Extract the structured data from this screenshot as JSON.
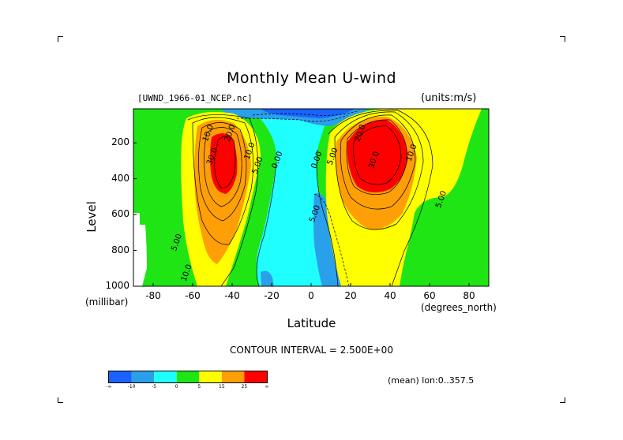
{
  "header": {
    "title": "Monthly Mean U-wind",
    "dataset": "[UWND_1966-01_NCEP.nc]",
    "units": "(units:m/s)"
  },
  "footer": {
    "contour_interval": "CONTOUR INTERVAL = 2.500E+00",
    "mean_info": "(mean) lon:0..357.5"
  },
  "chart_data": {
    "type": "heatmap",
    "title": "Monthly Mean U-wind",
    "xlabel": "Latitude",
    "xunit": "(degrees_north)",
    "ylabel": "Level",
    "yunit": "(millibar)",
    "xlim": [
      -90,
      90
    ],
    "ylim": [
      1000,
      10
    ],
    "x_ticks": [
      -80,
      -60,
      -40,
      -20,
      0,
      20,
      40,
      60,
      80
    ],
    "x_tick_labels": [
      "-80",
      "-60",
      "-40",
      "-20",
      "0",
      "20",
      "40",
      "60",
      "80"
    ],
    "y_ticks": [
      200,
      400,
      600,
      800,
      1000
    ],
    "y_tick_labels": [
      "200",
      "400",
      "600",
      "800",
      "1000"
    ],
    "contour_interval": 2.5,
    "features": [
      {
        "kind": "max",
        "lat": -47,
        "level": 250,
        "value": 30
      },
      {
        "kind": "max",
        "lat": 31,
        "level": 200,
        "value": 35
      },
      {
        "kind": "min",
        "lat": 8,
        "level": 700,
        "value": -5
      },
      {
        "kind": "min",
        "lat": 20,
        "level": 40,
        "value": -15
      }
    ],
    "contour_labels": [
      {
        "text": "10.0",
        "lat": -51,
        "level": 150
      },
      {
        "text": "20.0",
        "lat": -40,
        "level": 150
      },
      {
        "text": "30.0",
        "lat": -49,
        "level": 280
      },
      {
        "text": "10.0",
        "lat": -30,
        "level": 250
      },
      {
        "text": "5.00",
        "lat": -26,
        "level": 330
      },
      {
        "text": "0.00",
        "lat": -16,
        "level": 300
      },
      {
        "text": "0.00",
        "lat": 4,
        "level": 300
      },
      {
        "text": "5.00",
        "lat": 12,
        "level": 280
      },
      {
        "text": "20.0",
        "lat": 26,
        "level": 150
      },
      {
        "text": "30.0",
        "lat": 33,
        "level": 300
      },
      {
        "text": "10.0",
        "lat": 52,
        "level": 260
      },
      {
        "text": "5.00",
        "lat": 67,
        "level": 520
      },
      {
        "text": "5.00",
        "lat": 3,
        "level": 600
      },
      {
        "text": "5.00",
        "lat": -67,
        "level": 760
      },
      {
        "text": "10.0",
        "lat": -62,
        "level": 930
      }
    ],
    "colorbar": {
      "colors": [
        "#1a63ff",
        "#2a9fea",
        "#20ffff",
        "#1fe515",
        "#ffff00",
        "#ff9f07",
        "#ff0000"
      ],
      "labels": [
        "-∞",
        "-10",
        "-5",
        "0",
        "5",
        "15",
        "25",
        "∞"
      ]
    }
  }
}
